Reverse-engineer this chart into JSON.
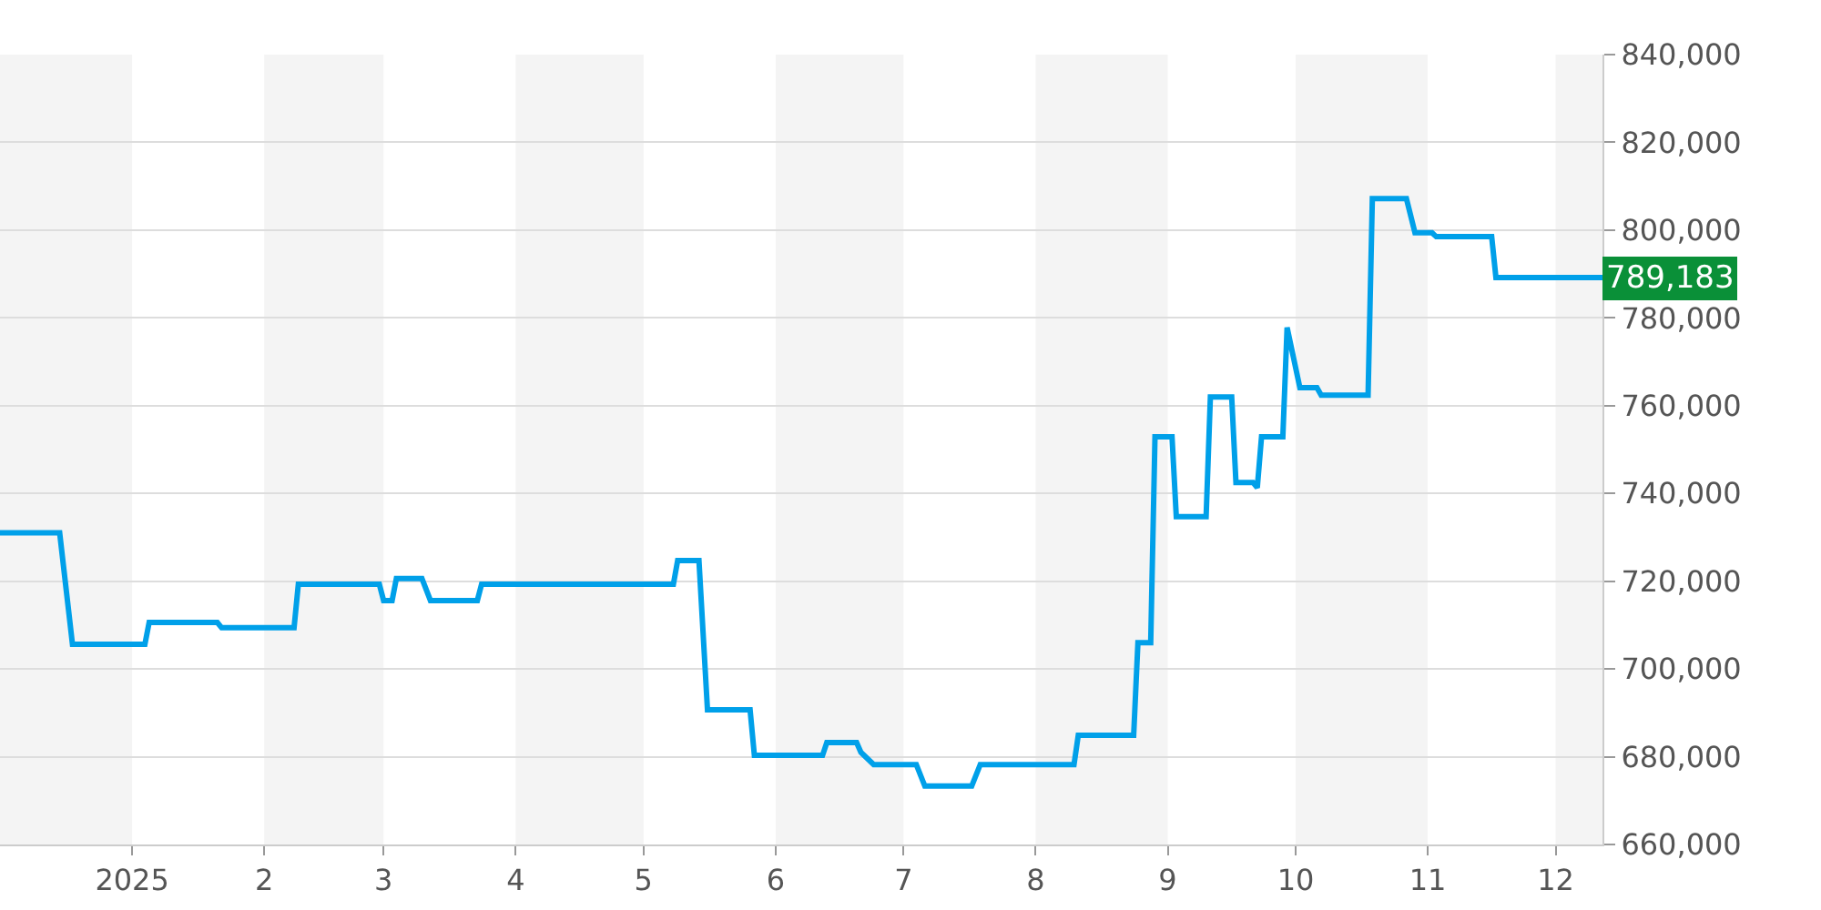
{
  "chart_data": {
    "type": "line",
    "x": [
      "2024-12-01",
      "2024-12-15",
      "2024-12-18",
      "2025-01-04",
      "2025-01-05",
      "2025-01-21",
      "2025-01-22",
      "2025-02-08",
      "2025-02-09",
      "2025-02-28",
      "2025-03-01",
      "2025-03-03",
      "2025-03-04",
      "2025-03-10",
      "2025-03-12",
      "2025-03-23",
      "2025-03-24",
      "2025-05-08",
      "2025-05-09",
      "2025-05-14",
      "2025-05-16",
      "2025-05-26",
      "2025-05-27",
      "2025-06-12",
      "2025-06-13",
      "2025-06-20",
      "2025-06-21",
      "2025-06-24",
      "2025-07-04",
      "2025-07-06",
      "2025-07-17",
      "2025-07-19",
      "2025-08-10",
      "2025-08-11",
      "2025-08-24",
      "2025-08-25",
      "2025-08-28",
      "2025-08-29",
      "2025-09-02",
      "2025-09-03",
      "2025-09-10",
      "2025-09-11",
      "2025-09-16",
      "2025-09-17",
      "2025-09-21",
      "2025-09-22",
      "2025-09-23",
      "2025-09-28",
      "2025-09-29",
      "2025-10-02",
      "2025-10-06",
      "2025-10-07",
      "2025-10-18",
      "2025-10-19",
      "2025-10-27",
      "2025-10-29",
      "2025-11-02",
      "2025-11-03",
      "2025-11-16",
      "2025-11-17",
      "2025-12-12"
    ],
    "series": [
      {
        "color": "#00a0e9",
        "values": [
          731000,
          731000,
          705600,
          705600,
          710600,
          710600,
          709400,
          709400,
          719300,
          719300,
          715600,
          715600,
          720600,
          720600,
          715600,
          715600,
          719300,
          719300,
          724700,
          724700,
          690700,
          690700,
          680300,
          680300,
          683200,
          683200,
          681000,
          678200,
          678200,
          673300,
          673300,
          678200,
          678200,
          684900,
          684900,
          706000,
          706000,
          752900,
          752900,
          734700,
          734700,
          762000,
          762000,
          742500,
          742500,
          741300,
          752900,
          752900,
          777800,
          764100,
          764100,
          762400,
          762400,
          807200,
          807200,
          799400,
          799400,
          798500,
          798500,
          789183,
          789183
        ]
      }
    ],
    "xlim": [
      "2024-12-01",
      "2025-12-12"
    ],
    "xticks": [
      {
        "value": "2025-01-01",
        "label": "2025"
      },
      {
        "value": "2025-02-01",
        "label": "2"
      },
      {
        "value": "2025-03-01",
        "label": "3"
      },
      {
        "value": "2025-04-01",
        "label": "4"
      },
      {
        "value": "2025-05-01",
        "label": "5"
      },
      {
        "value": "2025-06-01",
        "label": "6"
      },
      {
        "value": "2025-07-01",
        "label": "7"
      },
      {
        "value": "2025-08-01",
        "label": "8"
      },
      {
        "value": "2025-09-01",
        "label": "9"
      },
      {
        "value": "2025-10-01",
        "label": "10"
      },
      {
        "value": "2025-11-01",
        "label": "11"
      },
      {
        "value": "2025-12-01",
        "label": "12"
      }
    ],
    "ylim": [
      660000,
      840000
    ],
    "yticks": [
      {
        "value": 660000,
        "label": "660,000"
      },
      {
        "value": 680000,
        "label": "680,000"
      },
      {
        "value": 700000,
        "label": "700,000"
      },
      {
        "value": 720000,
        "label": "720,000"
      },
      {
        "value": 740000,
        "label": "740,000"
      },
      {
        "value": 760000,
        "label": "760,000"
      },
      {
        "value": 780000,
        "label": "780,000"
      },
      {
        "value": 800000,
        "label": "800,000"
      },
      {
        "value": 820000,
        "label": "820,000"
      },
      {
        "value": 840000,
        "label": "840,000"
      }
    ],
    "grid": "y",
    "bands": [
      {
        "axis": "x",
        "from": "2024-12-01",
        "to": "2025-01-01",
        "color": "#f4f4f4"
      },
      {
        "axis": "x",
        "from": "2025-02-01",
        "to": "2025-03-01",
        "color": "#f4f4f4"
      },
      {
        "axis": "x",
        "from": "2025-04-01",
        "to": "2025-05-01",
        "color": "#f4f4f4"
      },
      {
        "axis": "x",
        "from": "2025-06-01",
        "to": "2025-07-01",
        "color": "#f4f4f4"
      },
      {
        "axis": "x",
        "from": "2025-08-01",
        "to": "2025-09-01",
        "color": "#f4f4f4"
      },
      {
        "axis": "x",
        "from": "2025-10-01",
        "to": "2025-11-01",
        "color": "#f4f4f4"
      },
      {
        "axis": "x",
        "from": "2025-12-01",
        "to": "2025-12-12",
        "color": "#f4f4f4"
      }
    ],
    "annotations": [
      {
        "text": "789,183",
        "x": "2025-12-12",
        "y": 789183
      }
    ]
  }
}
